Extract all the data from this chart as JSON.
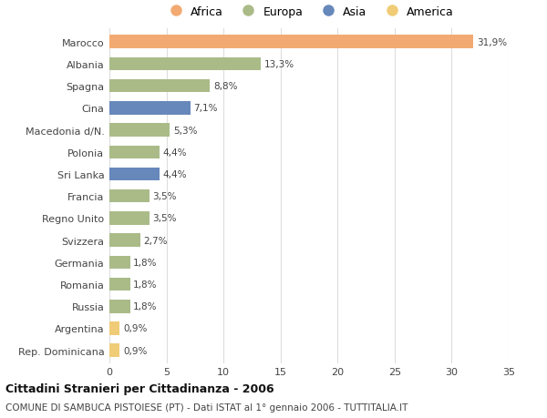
{
  "countries": [
    "Rep. Dominicana",
    "Argentina",
    "Russia",
    "Romania",
    "Germania",
    "Svizzera",
    "Regno Unito",
    "Francia",
    "Sri Lanka",
    "Polonia",
    "Macedonia d/N.",
    "Cina",
    "Spagna",
    "Albania",
    "Marocco"
  ],
  "values": [
    0.9,
    0.9,
    1.8,
    1.8,
    1.8,
    2.7,
    3.5,
    3.5,
    4.4,
    4.4,
    5.3,
    7.1,
    8.8,
    13.3,
    31.9
  ],
  "labels": [
    "0,9%",
    "0,9%",
    "1,8%",
    "1,8%",
    "1,8%",
    "2,7%",
    "3,5%",
    "3,5%",
    "4,4%",
    "4,4%",
    "5,3%",
    "7,1%",
    "8,8%",
    "13,3%",
    "31,9%"
  ],
  "continents": [
    "America",
    "America",
    "Europa",
    "Europa",
    "Europa",
    "Europa",
    "Europa",
    "Europa",
    "Asia",
    "Europa",
    "Europa",
    "Asia",
    "Europa",
    "Europa",
    "Africa"
  ],
  "colors": {
    "Africa": "#F2AA72",
    "Europa": "#AABB88",
    "Asia": "#6688BB",
    "America": "#F0CC77"
  },
  "xlim": [
    0,
    35
  ],
  "xticks": [
    0,
    5,
    10,
    15,
    20,
    25,
    30,
    35
  ],
  "title": "Cittadini Stranieri per Cittadinanza - 2006",
  "subtitle": "COMUNE DI SAMBUCA PISTOIESE (PT) - Dati ISTAT al 1° gennaio 2006 - TUTTITALIA.IT",
  "background_color": "#ffffff",
  "grid_color": "#dddddd",
  "bar_height": 0.6,
  "legend_order": [
    "Africa",
    "Europa",
    "Asia",
    "America"
  ]
}
